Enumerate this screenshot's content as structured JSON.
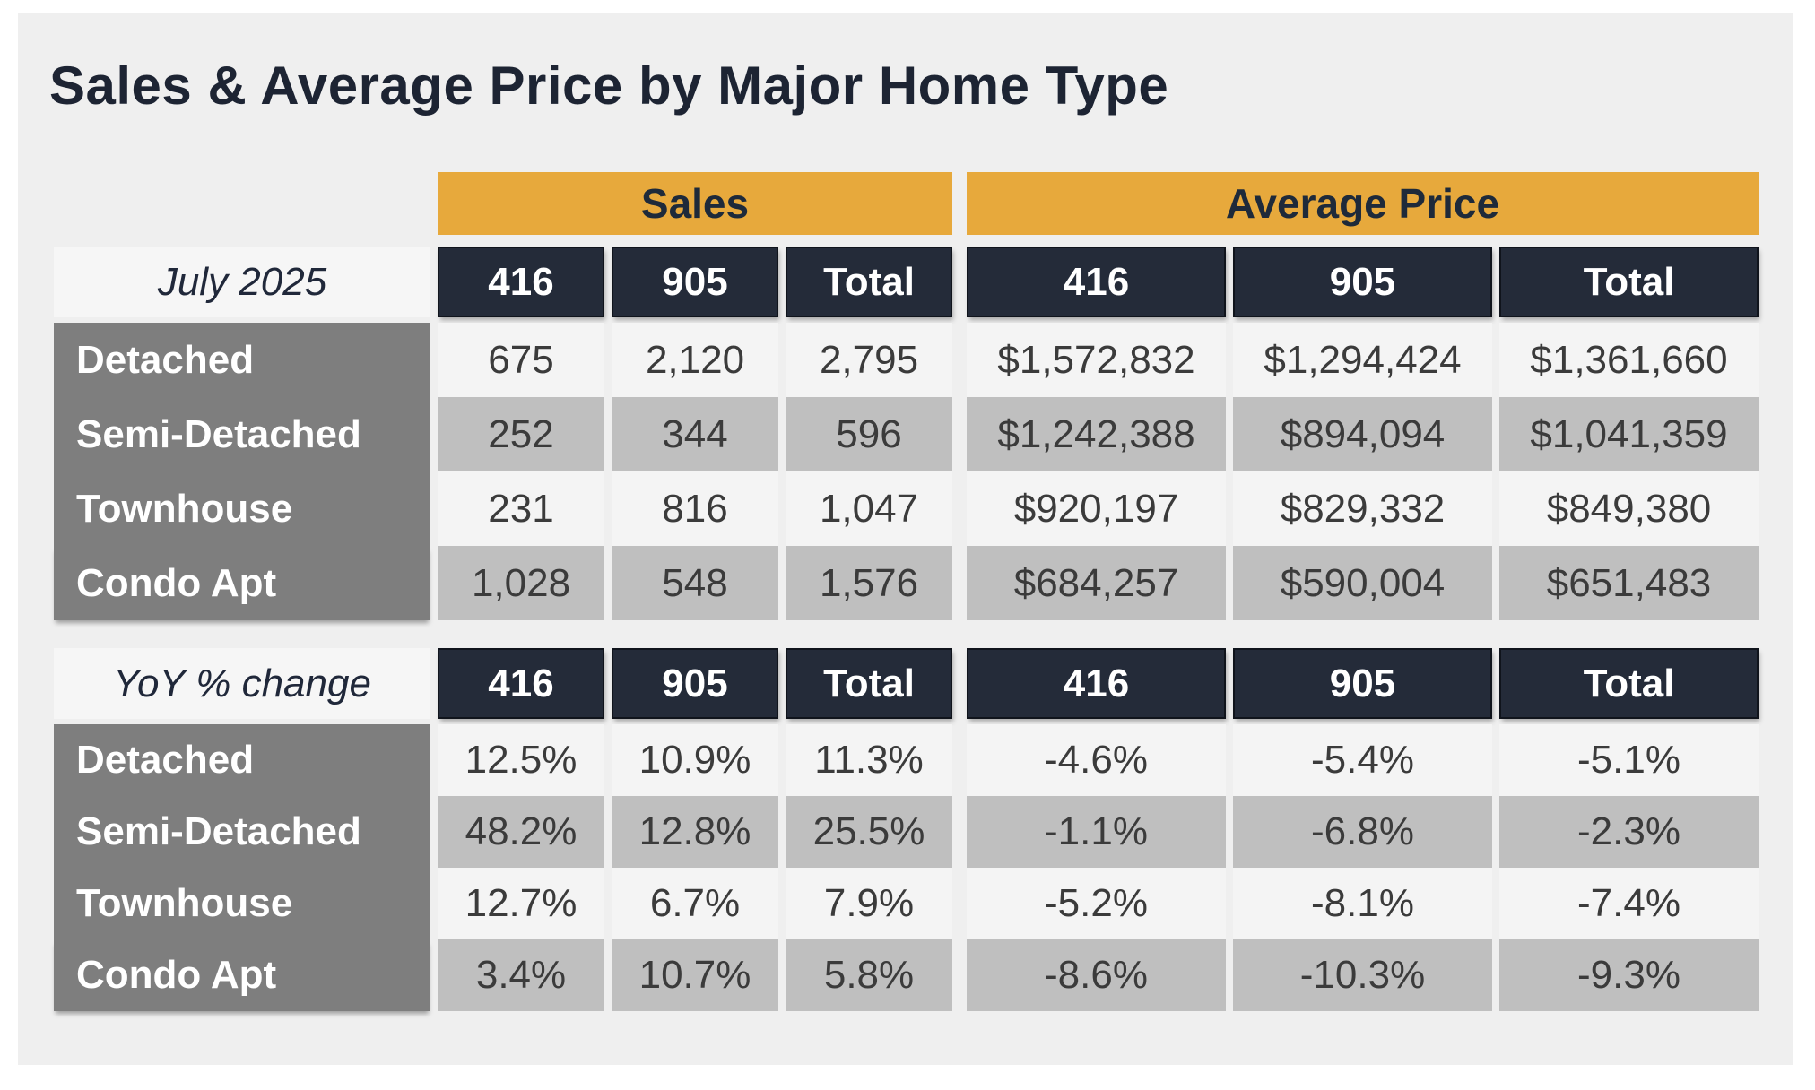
{
  "title": "Sales & Average Price by Major Home Type",
  "colors": {
    "gold_band": "#e7a93c",
    "navy_header": "#242b39",
    "label_column_gray": "#7e7e7e",
    "row_light": "#f4f4f4",
    "row_shade": "#bfbfbf",
    "panel_background": "#efefef"
  },
  "chart_data": {
    "type": "table",
    "title": "Sales & Average Price by Major Home Type",
    "group_headers": [
      "Sales",
      "Average Price"
    ],
    "sections": [
      {
        "period_label": "July 2025",
        "col_headers": [
          "416",
          "905",
          "Total",
          "416",
          "905",
          "Total"
        ],
        "rows": [
          {
            "label": "Detached",
            "values": [
              "675",
              "2,120",
              "2,795",
              "$1,572,832",
              "$1,294,424",
              "$1,361,660"
            ]
          },
          {
            "label": "Semi-Detached",
            "values": [
              "252",
              "344",
              "596",
              "$1,242,388",
              "$894,094",
              "$1,041,359"
            ]
          },
          {
            "label": "Townhouse",
            "values": [
              "231",
              "816",
              "1,047",
              "$920,197",
              "$829,332",
              "$849,380"
            ]
          },
          {
            "label": "Condo Apt",
            "values": [
              "1,028",
              "548",
              "1,576",
              "$684,257",
              "$590,004",
              "$651,483"
            ]
          }
        ]
      },
      {
        "period_label": "YoY % change",
        "col_headers": [
          "416",
          "905",
          "Total",
          "416",
          "905",
          "Total"
        ],
        "rows": [
          {
            "label": "Detached",
            "values": [
              "12.5%",
              "10.9%",
              "11.3%",
              "-4.6%",
              "-5.4%",
              "-5.1%"
            ]
          },
          {
            "label": "Semi-Detached",
            "values": [
              "48.2%",
              "12.8%",
              "25.5%",
              "-1.1%",
              "-6.8%",
              "-2.3%"
            ]
          },
          {
            "label": "Townhouse",
            "values": [
              "12.7%",
              "6.7%",
              "7.9%",
              "-5.2%",
              "-8.1%",
              "-7.4%"
            ]
          },
          {
            "label": "Condo Apt",
            "values": [
              "3.4%",
              "10.7%",
              "5.8%",
              "-8.6%",
              "-10.3%",
              "-9.3%"
            ]
          }
        ]
      }
    ]
  }
}
